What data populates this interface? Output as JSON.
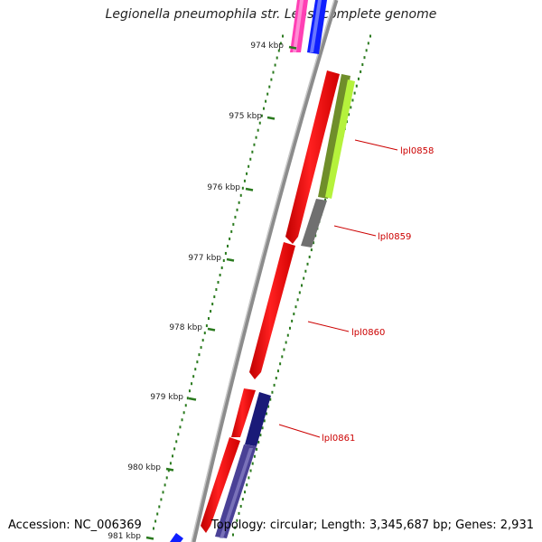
{
  "title": "Legionella pneumophila str. Lens, complete genome",
  "accession": "Accession: NC_006369",
  "topology": "Topology: circular; Length: 3,345,687 bp; Genes: 2,931",
  "ticks": [
    {
      "label": "974 kbp"
    },
    {
      "label": "975 kbp"
    },
    {
      "label": "976 kbp"
    },
    {
      "label": "977 kbp"
    },
    {
      "label": "978 kbp"
    },
    {
      "label": "979 kbp"
    },
    {
      "label": "980 kbp"
    },
    {
      "label": "981 kbp"
    }
  ],
  "genes": [
    {
      "label": "lpl0858"
    },
    {
      "label": "lpl0859"
    },
    {
      "label": "lpl0860"
    },
    {
      "label": "lpl0861"
    }
  ],
  "colors": {
    "forward_cds": "#ff0000",
    "backbone": "#8c8c8c",
    "tick": "#2a7a1e",
    "label": "#cc0000",
    "track_lime": "#b5f23c",
    "track_olive": "#6f8e2a",
    "track_gray": "#707070",
    "track_navy": "#1a1a78",
    "track_purple": "#4a4196",
    "track_blue": "#0f1fff",
    "track_pink": "#ff3fb4"
  }
}
